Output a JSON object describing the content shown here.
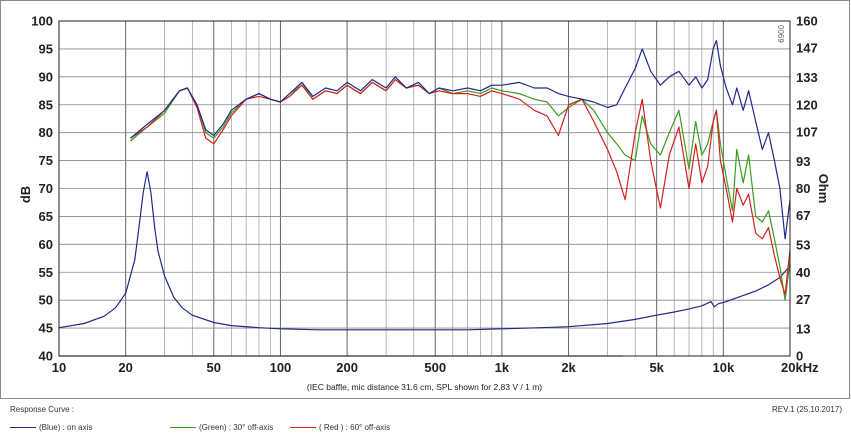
{
  "chart_data": {
    "type": "line",
    "ylabel": "dB",
    "y2label": "Ohm",
    "note": "(IEC baffle, mic distance 31.6 cm, SPL shown for 2.83 V / 1 m)",
    "side_code": "0069",
    "x_scale": "log",
    "xlim": [
      10,
      20000
    ],
    "ylim": [
      40,
      100
    ],
    "y2lim": [
      0,
      160
    ],
    "x_ticks": [
      {
        "value": 10,
        "label": "10"
      },
      {
        "value": 20,
        "label": "20"
      },
      {
        "value": 50,
        "label": "50"
      },
      {
        "value": 100,
        "label": "100"
      },
      {
        "value": 200,
        "label": "200"
      },
      {
        "value": 500,
        "label": "500"
      },
      {
        "value": 1000,
        "label": "1k"
      },
      {
        "value": 2000,
        "label": "2k"
      },
      {
        "value": 5000,
        "label": "5k"
      },
      {
        "value": 10000,
        "label": "10k"
      },
      {
        "value": 20000,
        "label": "20kHz"
      }
    ],
    "y_ticks": [
      40,
      45,
      50,
      55,
      60,
      65,
      70,
      75,
      80,
      85,
      90,
      95,
      100
    ],
    "y2_ticks": [
      0,
      13,
      27,
      40,
      53,
      67,
      80,
      93,
      107,
      120,
      133,
      147,
      160
    ],
    "grid": true,
    "series": [
      {
        "name": "(Blue) : on axis",
        "color": "#1f2a8a",
        "axis": "left",
        "points": [
          [
            21,
            79
          ],
          [
            25,
            81.5
          ],
          [
            30,
            84
          ],
          [
            35,
            87.5
          ],
          [
            38,
            88
          ],
          [
            42,
            85
          ],
          [
            46,
            80.5
          ],
          [
            50,
            79.5
          ],
          [
            55,
            81.5
          ],
          [
            60,
            84
          ],
          [
            70,
            86
          ],
          [
            80,
            87
          ],
          [
            90,
            86
          ],
          [
            100,
            85.5
          ],
          [
            110,
            87
          ],
          [
            125,
            89
          ],
          [
            140,
            86.5
          ],
          [
            160,
            88
          ],
          [
            180,
            87.5
          ],
          [
            200,
            89
          ],
          [
            230,
            87.5
          ],
          [
            260,
            89.5
          ],
          [
            300,
            88
          ],
          [
            330,
            90
          ],
          [
            370,
            88
          ],
          [
            420,
            89
          ],
          [
            470,
            87
          ],
          [
            520,
            88
          ],
          [
            600,
            87.5
          ],
          [
            700,
            88
          ],
          [
            800,
            87.5
          ],
          [
            900,
            88.5
          ],
          [
            1000,
            88.5
          ],
          [
            1200,
            89
          ],
          [
            1400,
            88
          ],
          [
            1600,
            88
          ],
          [
            1800,
            87
          ],
          [
            2000,
            86.5
          ],
          [
            2300,
            86
          ],
          [
            2600,
            85.5
          ],
          [
            3000,
            84.5
          ],
          [
            3300,
            85
          ],
          [
            3600,
            88
          ],
          [
            4000,
            91.5
          ],
          [
            4300,
            95
          ],
          [
            4700,
            91
          ],
          [
            5200,
            88.5
          ],
          [
            5700,
            90
          ],
          [
            6300,
            91
          ],
          [
            7000,
            88.5
          ],
          [
            7500,
            90
          ],
          [
            8000,
            88
          ],
          [
            8500,
            89.5
          ],
          [
            9000,
            95
          ],
          [
            9300,
            96.5
          ],
          [
            9700,
            92
          ],
          [
            10300,
            88
          ],
          [
            11000,
            85
          ],
          [
            11500,
            88
          ],
          [
            12300,
            84
          ],
          [
            13000,
            87.5
          ],
          [
            14000,
            82
          ],
          [
            15000,
            77
          ],
          [
            16000,
            80
          ],
          [
            17000,
            75
          ],
          [
            18000,
            70
          ],
          [
            19000,
            61
          ],
          [
            20000,
            68
          ]
        ]
      },
      {
        "name": "(Green) : 30° off-axis",
        "color": "#3a9e1f",
        "axis": "left",
        "points": [
          [
            21,
            78.5
          ],
          [
            25,
            81
          ],
          [
            30,
            83.5
          ],
          [
            35,
            87.5
          ],
          [
            38,
            88
          ],
          [
            42,
            85
          ],
          [
            46,
            80
          ],
          [
            50,
            79
          ],
          [
            55,
            81
          ],
          [
            60,
            83.5
          ],
          [
            70,
            86
          ],
          [
            80,
            87
          ],
          [
            90,
            86
          ],
          [
            100,
            85.5
          ],
          [
            110,
            86.5
          ],
          [
            125,
            89
          ],
          [
            140,
            86
          ],
          [
            160,
            87.5
          ],
          [
            180,
            87
          ],
          [
            200,
            88.5
          ],
          [
            230,
            87
          ],
          [
            260,
            89
          ],
          [
            300,
            87.5
          ],
          [
            330,
            89.5
          ],
          [
            370,
            88
          ],
          [
            420,
            88.5
          ],
          [
            470,
            87
          ],
          [
            520,
            88
          ],
          [
            600,
            87
          ],
          [
            700,
            87.5
          ],
          [
            800,
            87
          ],
          [
            900,
            88
          ],
          [
            1000,
            87.5
          ],
          [
            1200,
            87
          ],
          [
            1400,
            86
          ],
          [
            1600,
            85.5
          ],
          [
            1800,
            83
          ],
          [
            2000,
            84.5
          ],
          [
            2300,
            86
          ],
          [
            2600,
            84
          ],
          [
            3000,
            80
          ],
          [
            3300,
            78
          ],
          [
            3600,
            76
          ],
          [
            4000,
            75
          ],
          [
            4300,
            83
          ],
          [
            4700,
            78
          ],
          [
            5200,
            76
          ],
          [
            5700,
            80
          ],
          [
            6300,
            84
          ],
          [
            7000,
            73.5
          ],
          [
            7500,
            82
          ],
          [
            8000,
            76
          ],
          [
            8500,
            78
          ],
          [
            9000,
            82
          ],
          [
            9300,
            84
          ],
          [
            9700,
            78
          ],
          [
            10300,
            72
          ],
          [
            11000,
            66
          ],
          [
            11500,
            77
          ],
          [
            12300,
            71
          ],
          [
            13000,
            76
          ],
          [
            14000,
            65
          ],
          [
            15000,
            64
          ],
          [
            16000,
            66
          ],
          [
            17000,
            61
          ],
          [
            18000,
            56
          ],
          [
            19000,
            50
          ],
          [
            20000,
            57
          ]
        ]
      },
      {
        "name": "( Red ) : 60° off-axis",
        "color": "#d42020",
        "axis": "left",
        "points": [
          [
            21,
            79
          ],
          [
            25,
            81
          ],
          [
            30,
            84
          ],
          [
            35,
            87.5
          ],
          [
            38,
            88
          ],
          [
            42,
            84.5
          ],
          [
            46,
            79
          ],
          [
            50,
            78
          ],
          [
            55,
            80.5
          ],
          [
            60,
            83
          ],
          [
            70,
            86
          ],
          [
            80,
            86.5
          ],
          [
            90,
            86
          ],
          [
            100,
            85.5
          ],
          [
            110,
            86.5
          ],
          [
            125,
            88.5
          ],
          [
            140,
            86
          ],
          [
            160,
            87.5
          ],
          [
            180,
            87
          ],
          [
            200,
            88.5
          ],
          [
            230,
            87
          ],
          [
            260,
            89
          ],
          [
            300,
            87.5
          ],
          [
            330,
            89.5
          ],
          [
            370,
            88
          ],
          [
            420,
            88.5
          ],
          [
            470,
            87
          ],
          [
            520,
            87.5
          ],
          [
            600,
            87
          ],
          [
            700,
            87
          ],
          [
            800,
            86.5
          ],
          [
            900,
            87.5
          ],
          [
            1000,
            87
          ],
          [
            1200,
            86
          ],
          [
            1400,
            84
          ],
          [
            1600,
            83
          ],
          [
            1800,
            79.5
          ],
          [
            2000,
            85
          ],
          [
            2300,
            86
          ],
          [
            2600,
            82
          ],
          [
            3000,
            77
          ],
          [
            3300,
            73
          ],
          [
            3600,
            68
          ],
          [
            4000,
            80
          ],
          [
            4300,
            86
          ],
          [
            4700,
            75
          ],
          [
            5200,
            66.5
          ],
          [
            5700,
            76
          ],
          [
            6300,
            81
          ],
          [
            7000,
            70
          ],
          [
            7500,
            78
          ],
          [
            8000,
            71
          ],
          [
            8500,
            74
          ],
          [
            9000,
            82
          ],
          [
            9300,
            84
          ],
          [
            9700,
            75
          ],
          [
            10300,
            70
          ],
          [
            11000,
            64
          ],
          [
            11500,
            70
          ],
          [
            12300,
            67
          ],
          [
            13000,
            69
          ],
          [
            14000,
            62
          ],
          [
            15000,
            61
          ],
          [
            16000,
            63
          ],
          [
            17000,
            58
          ],
          [
            18000,
            54
          ],
          [
            19000,
            51
          ],
          [
            20000,
            59
          ]
        ]
      },
      {
        "name": "impedance",
        "color": "#1f2a8a",
        "axis": "right",
        "points": [
          [
            10,
            13.5
          ],
          [
            13,
            15.5
          ],
          [
            16,
            19
          ],
          [
            18,
            23
          ],
          [
            20,
            30
          ],
          [
            22,
            46
          ],
          [
            23,
            62
          ],
          [
            24,
            78
          ],
          [
            25,
            88
          ],
          [
            26,
            78
          ],
          [
            27,
            62
          ],
          [
            28,
            50
          ],
          [
            30,
            38
          ],
          [
            33,
            28
          ],
          [
            36,
            23
          ],
          [
            40,
            19.5
          ],
          [
            50,
            16
          ],
          [
            60,
            14.5
          ],
          [
            80,
            13.5
          ],
          [
            100,
            13
          ],
          [
            150,
            12.5
          ],
          [
            200,
            12.5
          ],
          [
            300,
            12.5
          ],
          [
            500,
            12.5
          ],
          [
            700,
            12.5
          ],
          [
            1000,
            13
          ],
          [
            1500,
            13.5
          ],
          [
            2000,
            14
          ],
          [
            3000,
            15.5
          ],
          [
            4000,
            17.5
          ],
          [
            5000,
            19.5
          ],
          [
            6000,
            21
          ],
          [
            7000,
            22.5
          ],
          [
            8000,
            24
          ],
          [
            8800,
            26
          ],
          [
            9100,
            23.5
          ],
          [
            9500,
            25
          ],
          [
            10000,
            25.5
          ],
          [
            12000,
            28.5
          ],
          [
            14000,
            31
          ],
          [
            16000,
            34
          ],
          [
            18000,
            37.5
          ],
          [
            20000,
            43
          ]
        ]
      },
      {
        "name": "baseline",
        "color": "#3a9e1f",
        "axis": "left",
        "points": [
          [
            10,
            40
          ],
          [
            3500,
            40
          ]
        ]
      }
    ]
  },
  "footer": {
    "legend_title": "Response Curve :",
    "revision": "REV.1 (25.10.2017)",
    "legend": [
      {
        "label": "(Blue) : on axis",
        "color": "#1f2a8a"
      },
      {
        "label": "(Green) : 30° off-axis",
        "color": "#3a9e1f"
      },
      {
        "label": "( Red ) : 60° off-axis",
        "color": "#d42020"
      }
    ]
  }
}
